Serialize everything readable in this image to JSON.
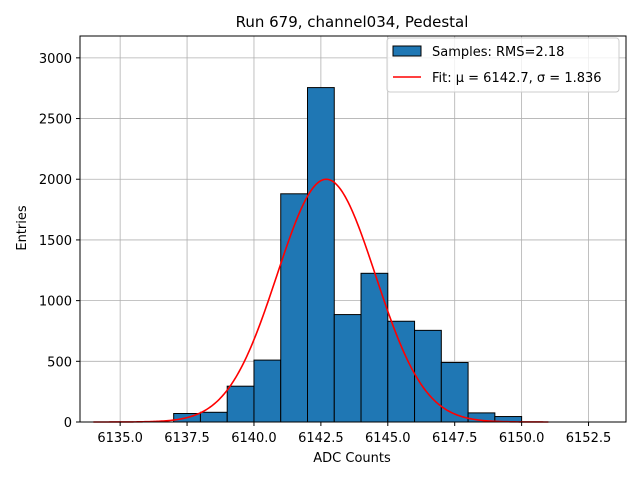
{
  "chart_data": {
    "type": "bar",
    "title": "Run 679, channel034, Pedestal",
    "xlabel": "ADC Counts",
    "ylabel": "Entries",
    "xlim": [
      6133.5,
      6153.9
    ],
    "ylim": [
      0,
      3180
    ],
    "xticks": [
      6135.0,
      6137.5,
      6140.0,
      6142.5,
      6145.0,
      6147.5,
      6150.0,
      6152.5
    ],
    "xtick_labels": [
      "6135.0",
      "6137.5",
      "6140.0",
      "6142.5",
      "6145.0",
      "6147.5",
      "6150.0",
      "6152.5"
    ],
    "yticks": [
      0,
      500,
      1000,
      1500,
      2000,
      2500,
      3000
    ],
    "ytick_labels": [
      "0",
      "500",
      "1000",
      "1500",
      "2000",
      "2500",
      "3000"
    ],
    "grid": true,
    "legend_position": "top-right",
    "histogram": {
      "name": "Samples: RMS=2.18",
      "color": "#1f77b4",
      "bin_edges": [
        6137,
        6138,
        6139,
        6140,
        6141,
        6142,
        6143,
        6144,
        6145,
        6146,
        6147,
        6148,
        6149,
        6150
      ],
      "values": [
        70,
        80,
        295,
        510,
        1880,
        2755,
        885,
        1225,
        830,
        755,
        490,
        75,
        45
      ]
    },
    "fit": {
      "name": "Fit: μ = 6142.7, σ = 1.836",
      "color": "#ff0000",
      "mu": 6142.7,
      "sigma": 1.836,
      "amplitude": 2000,
      "x_range": [
        6134,
        6151
      ]
    }
  }
}
